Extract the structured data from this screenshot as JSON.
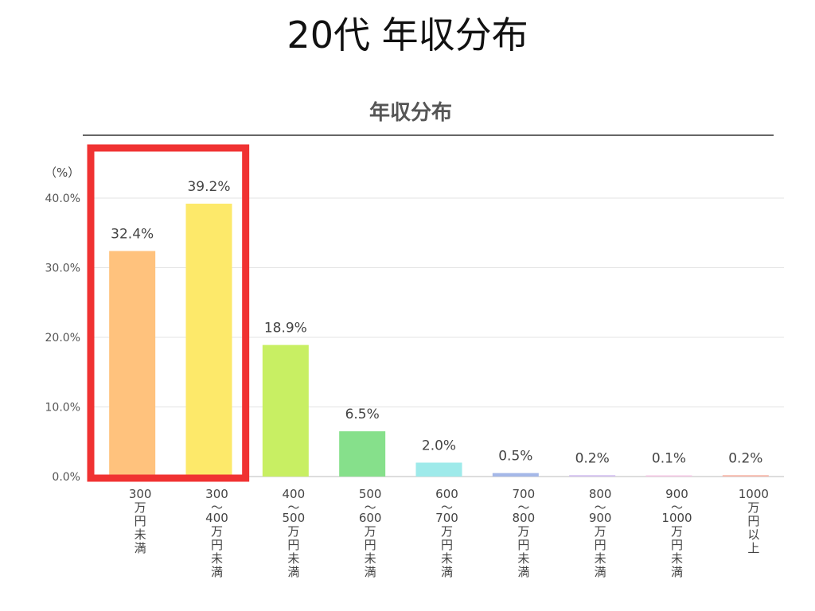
{
  "page_title": "20代 年収分布",
  "chart_data": {
    "type": "bar",
    "title": "年収分布",
    "unit_label": "（%）",
    "ylim": [
      0,
      40
    ],
    "yticks": [
      "0.0%",
      "10.0%",
      "20.0%",
      "30.0%",
      "40.0%"
    ],
    "grid": true,
    "categories": [
      [
        "300",
        "万円未満"
      ],
      [
        "300",
        "〜",
        "400",
        "万円未満"
      ],
      [
        "400",
        "〜",
        "500",
        "万円未満"
      ],
      [
        "500",
        "〜",
        "600",
        "万円未満"
      ],
      [
        "600",
        "〜",
        "700",
        "万円未満"
      ],
      [
        "700",
        "〜",
        "800",
        "万円未満"
      ],
      [
        "800",
        "〜",
        "900",
        "万円未満"
      ],
      [
        "900",
        "〜",
        "1000",
        "万円未満"
      ],
      [
        "1000",
        "万円以上"
      ]
    ],
    "values": [
      32.4,
      39.2,
      18.9,
      6.5,
      2.0,
      0.5,
      0.2,
      0.1,
      0.2
    ],
    "data_labels": [
      "32.4%",
      "39.2%",
      "18.9%",
      "6.5%",
      "2.0%",
      "0.5%",
      "0.2%",
      "0.1%",
      "0.2%"
    ],
    "colors": [
      "#ffc27d",
      "#fde96a",
      "#c8ef63",
      "#86e08b",
      "#9eeaea",
      "#a5b8e8",
      "#d3bff0",
      "#f5c6e4",
      "#f7b6a8"
    ],
    "highlight": {
      "categories": [
        0,
        1
      ],
      "color": "#f03232"
    }
  }
}
